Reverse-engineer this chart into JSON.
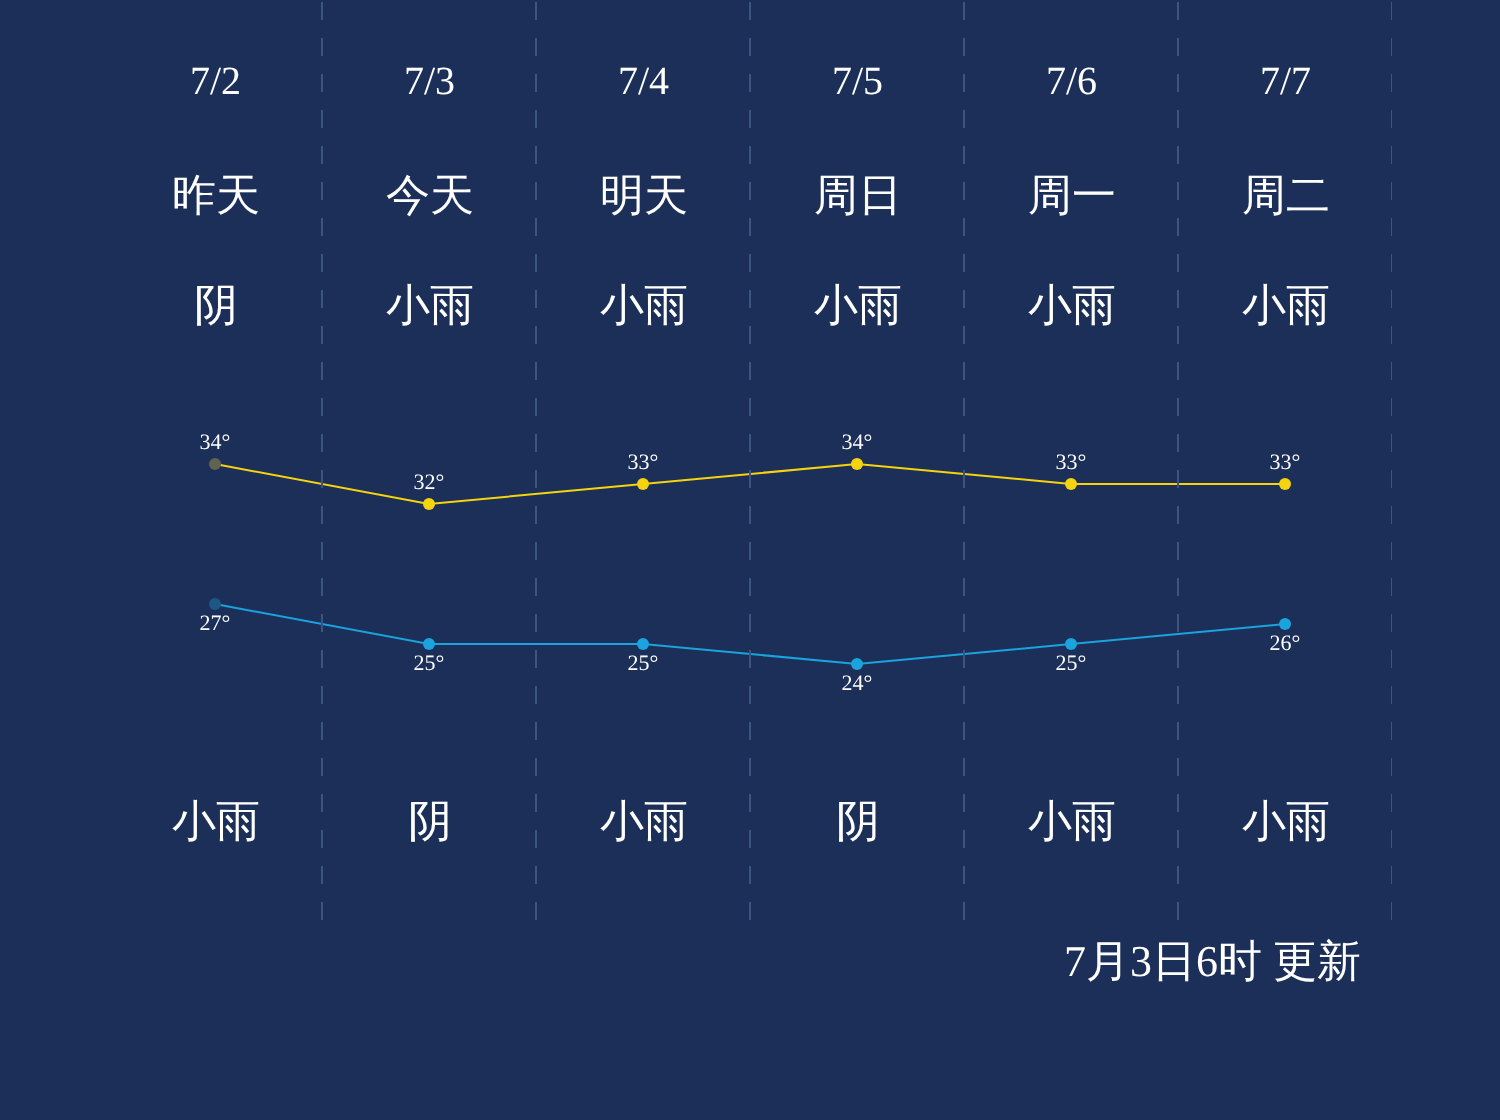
{
  "chart_data": {
    "type": "line",
    "categories": [
      "7/2",
      "7/3",
      "7/4",
      "7/5",
      "7/6",
      "7/7"
    ],
    "series": [
      {
        "color": "#f5d40f",
        "colors": [
          "#5f6350",
          "#f5d40f",
          "#f5d40f",
          "#f5d40f",
          "#f5d40f",
          "#f5d40f"
        ],
        "values": [
          34,
          32,
          33,
          34,
          33,
          33
        ],
        "value_labels": [
          "34°",
          "32°",
          "33°",
          "34°",
          "33°",
          "33°"
        ]
      },
      {
        "color": "#1aa3dd",
        "colors": [
          "#1d5785",
          "#1aa3dd",
          "#1aa3dd",
          "#1aa3dd",
          "#1aa3dd",
          "#1aa3dd"
        ],
        "values": [
          27,
          25,
          25,
          24,
          25,
          26
        ],
        "value_labels": [
          "27°",
          "25°",
          "25°",
          "24°",
          "25°",
          "26°"
        ]
      }
    ],
    "grid": "x",
    "marker": "circle",
    "tick_labels": false,
    "annotations": [
      "昨天",
      "今天",
      "明天",
      "周日",
      "周一",
      "周二",
      "阴",
      "小雨",
      "小雨",
      "小雨",
      "小雨",
      "小雨",
      "小雨",
      "阴",
      "小雨",
      "阴",
      "小雨",
      "小雨",
      "7月3日6时 更新"
    ]
  }
}
